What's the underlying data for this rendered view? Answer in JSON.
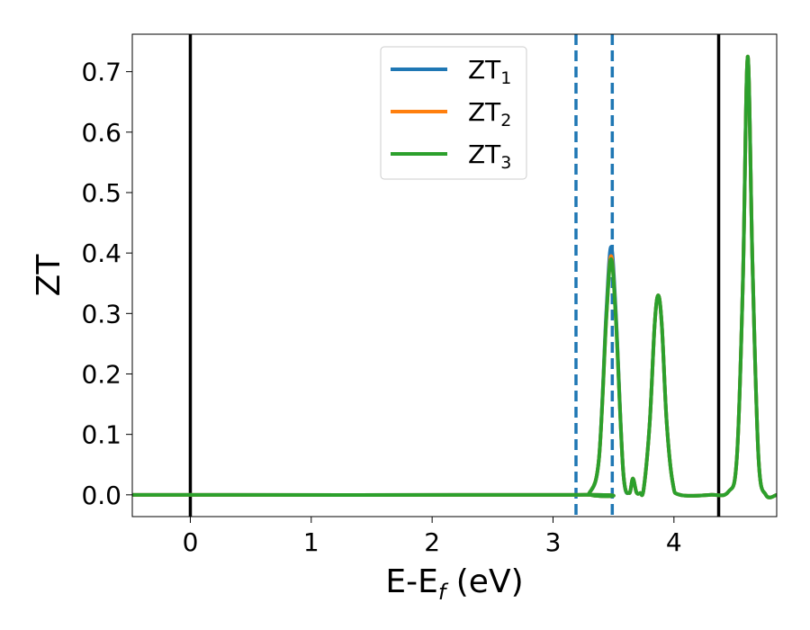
{
  "chart_data": {
    "type": "line",
    "xlabel_main": "E-E",
    "xlabel_sub": "f",
    "xlabel_unit": " (eV)",
    "ylabel": "ZT",
    "xlim": [
      -0.48,
      4.85
    ],
    "ylim": [
      -0.036,
      0.762
    ],
    "xticks": [
      0,
      1,
      2,
      3,
      4
    ],
    "xtick_labels": [
      "0",
      "1",
      "2",
      "3",
      "4"
    ],
    "yticks": [
      0.0,
      0.1,
      0.2,
      0.3,
      0.4,
      0.5,
      0.6,
      0.7
    ],
    "ytick_labels": [
      "0.0",
      "0.1",
      "0.2",
      "0.3",
      "0.4",
      "0.5",
      "0.6",
      "0.7"
    ],
    "grid": false,
    "legend_placement": "top-center",
    "series": [
      {
        "name_main": "ZT",
        "name_sub": "1",
        "color": "#1f77b4",
        "x": [
          -0.48,
          3.2,
          3.3,
          3.38,
          3.44,
          3.48,
          3.52,
          3.58,
          3.63,
          3.66,
          3.69,
          3.72,
          3.75,
          3.8,
          3.84,
          3.87,
          3.9,
          3.94,
          3.99,
          4.05,
          4.3,
          4.45,
          4.52,
          4.57,
          4.61,
          4.65,
          4.7,
          4.76,
          4.85
        ],
        "y": [
          0.0,
          0.0,
          0.003,
          0.06,
          0.3,
          0.41,
          0.3,
          0.04,
          0.003,
          0.027,
          0.004,
          0.003,
          0.01,
          0.12,
          0.28,
          0.33,
          0.28,
          0.12,
          0.02,
          0.0,
          0.0,
          0.005,
          0.06,
          0.35,
          0.725,
          0.38,
          0.06,
          0.0,
          0.0
        ]
      },
      {
        "name_main": "ZT",
        "name_sub": "2",
        "color": "#ff7f0e",
        "x": [
          -0.48,
          3.2,
          3.3,
          3.38,
          3.44,
          3.48,
          3.52,
          3.58,
          3.63,
          3.66,
          3.69,
          3.72,
          3.75,
          3.8,
          3.84,
          3.87,
          3.9,
          3.94,
          3.99,
          4.05,
          4.3,
          4.45,
          4.52,
          4.57,
          4.61,
          4.65,
          4.7,
          4.76,
          4.85
        ],
        "y": [
          0.0,
          0.0,
          0.003,
          0.06,
          0.29,
          0.395,
          0.29,
          0.04,
          0.003,
          0.027,
          0.004,
          0.003,
          0.01,
          0.12,
          0.28,
          0.33,
          0.28,
          0.12,
          0.02,
          0.0,
          0.0,
          0.005,
          0.06,
          0.35,
          0.725,
          0.38,
          0.06,
          0.0,
          0.0
        ]
      },
      {
        "name_main": "ZT",
        "name_sub": "3",
        "color": "#2ca02c",
        "x": [
          -0.48,
          3.2,
          3.3,
          3.38,
          3.44,
          3.48,
          3.52,
          3.58,
          3.63,
          3.66,
          3.69,
          3.72,
          3.75,
          3.8,
          3.84,
          3.87,
          3.9,
          3.94,
          3.99,
          4.05,
          4.3,
          4.45,
          4.52,
          4.57,
          4.61,
          4.65,
          4.7,
          4.76,
          4.85
        ],
        "y": [
          0.0,
          0.0,
          0.003,
          0.06,
          0.29,
          0.39,
          0.29,
          0.04,
          0.003,
          0.027,
          0.004,
          0.003,
          0.01,
          0.12,
          0.28,
          0.33,
          0.28,
          0.12,
          0.02,
          0.0,
          0.0,
          0.005,
          0.06,
          0.35,
          0.725,
          0.38,
          0.06,
          0.0,
          0.0
        ]
      }
    ],
    "vlines_solid": {
      "color": "#000000",
      "x": [
        0.0,
        4.37
      ]
    },
    "vlines_dashed": {
      "color": "#1f77b4",
      "x": [
        3.19,
        3.49
      ]
    }
  }
}
